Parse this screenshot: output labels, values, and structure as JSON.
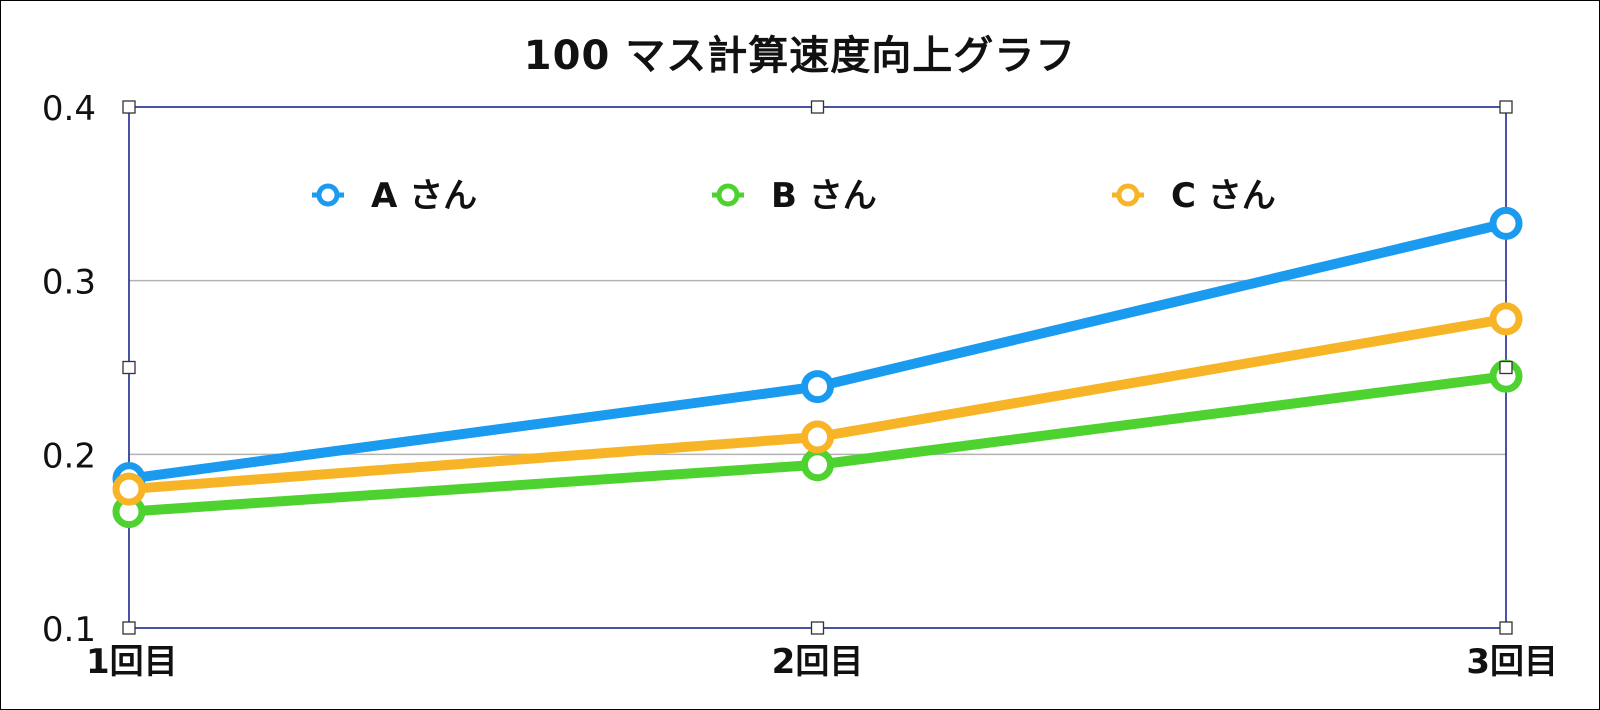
{
  "chart_data": {
    "type": "line",
    "title": "100 マス計算速度向上グラフ",
    "categories": [
      "1回目",
      "2回目",
      "3回目"
    ],
    "yticks": [
      "0.1",
      "0.2",
      "0.3",
      "0.4"
    ],
    "ylim": [
      0.1,
      0.4
    ],
    "grid": true,
    "legend_position": "top-inside",
    "series": [
      {
        "name": "A さん",
        "values": [
          0.186,
          0.239,
          0.333
        ],
        "color": "#1a9bf0"
      },
      {
        "name": "B さん",
        "values": [
          0.167,
          0.194,
          0.245
        ],
        "color": "#4ed22f"
      },
      {
        "name": "C さん",
        "values": [
          0.18,
          0.21,
          0.278
        ],
        "color": "#f7b427"
      }
    ]
  }
}
